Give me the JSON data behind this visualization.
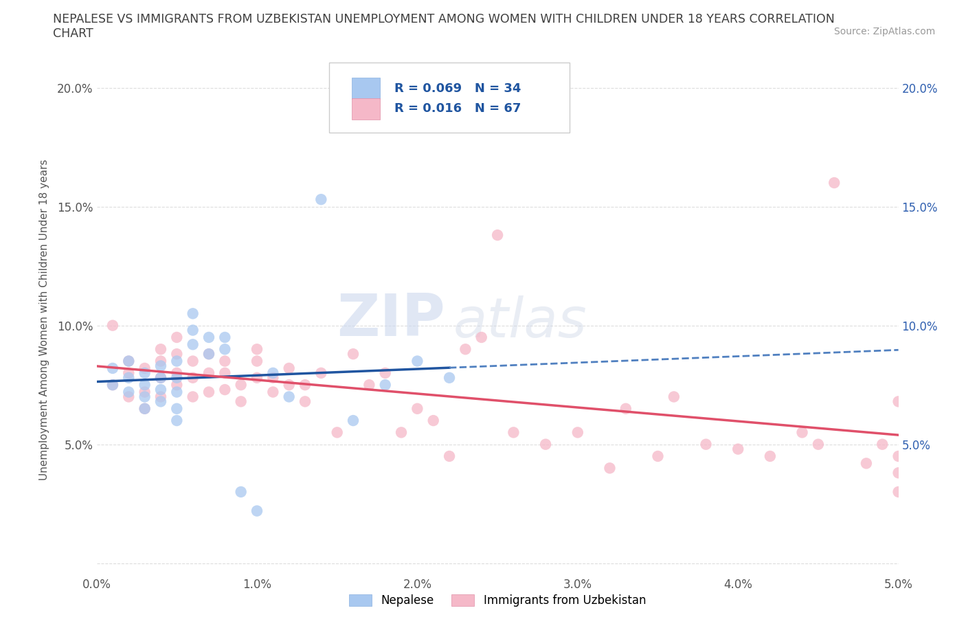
{
  "title_line1": "NEPALESE VS IMMIGRANTS FROM UZBEKISTAN UNEMPLOYMENT AMONG WOMEN WITH CHILDREN UNDER 18 YEARS CORRELATION",
  "title_line2": "CHART",
  "source": "Source: ZipAtlas.com",
  "ylabel": "Unemployment Among Women with Children Under 18 years",
  "label_nepalese": "Nepalese",
  "label_uzbek": "Immigrants from Uzbekistan",
  "xlim": [
    0.0,
    0.05
  ],
  "ylim": [
    -0.005,
    0.21
  ],
  "x_ticks": [
    0.0,
    0.01,
    0.02,
    0.03,
    0.04,
    0.05
  ],
  "x_tick_labels": [
    "0.0%",
    "1.0%",
    "2.0%",
    "3.0%",
    "4.0%",
    "5.0%"
  ],
  "y_ticks": [
    0.0,
    0.05,
    0.1,
    0.15,
    0.2
  ],
  "y_tick_labels_left": [
    "",
    "5.0%",
    "10.0%",
    "15.0%",
    "20.0%"
  ],
  "y_tick_labels_right": [
    "",
    "5.0%",
    "10.0%",
    "15.0%",
    "20.0%"
  ],
  "blue_scatter_color": "#a8c8f0",
  "pink_scatter_color": "#f5b8c8",
  "blue_line_color": "#2055a0",
  "pink_line_color": "#e0506a",
  "blue_line_color_dashed": "#5080c0",
  "grid_color": "#dddddd",
  "title_color": "#404040",
  "axis_label_color": "#555555",
  "right_tick_color": "#3060b0",
  "left_tick_color": "#555555",
  "legend_r1_text": "R = 0.069   N = 34",
  "legend_r2_text": "R = 0.016   N = 67",
  "watermark_color": "#e0e8f5",
  "background_color": "#ffffff",
  "nepalese_x": [
    0.001,
    0.001,
    0.002,
    0.002,
    0.002,
    0.003,
    0.003,
    0.003,
    0.003,
    0.004,
    0.004,
    0.004,
    0.004,
    0.005,
    0.005,
    0.005,
    0.005,
    0.005,
    0.006,
    0.006,
    0.006,
    0.007,
    0.007,
    0.008,
    0.008,
    0.009,
    0.01,
    0.011,
    0.012,
    0.014,
    0.016,
    0.018,
    0.02,
    0.022
  ],
  "nepalese_y": [
    0.075,
    0.082,
    0.072,
    0.078,
    0.085,
    0.065,
    0.07,
    0.075,
    0.08,
    0.068,
    0.073,
    0.078,
    0.083,
    0.06,
    0.065,
    0.072,
    0.078,
    0.085,
    0.092,
    0.098,
    0.105,
    0.088,
    0.095,
    0.09,
    0.095,
    0.03,
    0.022,
    0.08,
    0.07,
    0.153,
    0.06,
    0.075,
    0.085,
    0.078
  ],
  "uzbek_x": [
    0.001,
    0.001,
    0.002,
    0.002,
    0.002,
    0.003,
    0.003,
    0.003,
    0.004,
    0.004,
    0.004,
    0.004,
    0.005,
    0.005,
    0.005,
    0.005,
    0.006,
    0.006,
    0.006,
    0.007,
    0.007,
    0.007,
    0.008,
    0.008,
    0.008,
    0.009,
    0.009,
    0.01,
    0.01,
    0.01,
    0.011,
    0.011,
    0.012,
    0.012,
    0.013,
    0.013,
    0.014,
    0.015,
    0.016,
    0.017,
    0.018,
    0.019,
    0.02,
    0.021,
    0.022,
    0.023,
    0.024,
    0.025,
    0.026,
    0.028,
    0.03,
    0.032,
    0.033,
    0.035,
    0.036,
    0.038,
    0.04,
    0.042,
    0.044,
    0.045,
    0.046,
    0.048,
    0.049,
    0.05,
    0.05,
    0.05,
    0.05
  ],
  "uzbek_y": [
    0.1,
    0.075,
    0.07,
    0.08,
    0.085,
    0.065,
    0.072,
    0.082,
    0.07,
    0.078,
    0.085,
    0.09,
    0.075,
    0.08,
    0.088,
    0.095,
    0.07,
    0.078,
    0.085,
    0.072,
    0.08,
    0.088,
    0.073,
    0.08,
    0.085,
    0.068,
    0.075,
    0.078,
    0.085,
    0.09,
    0.072,
    0.078,
    0.075,
    0.082,
    0.068,
    0.075,
    0.08,
    0.055,
    0.088,
    0.075,
    0.08,
    0.055,
    0.065,
    0.06,
    0.045,
    0.09,
    0.095,
    0.138,
    0.055,
    0.05,
    0.055,
    0.04,
    0.065,
    0.045,
    0.07,
    0.05,
    0.048,
    0.045,
    0.055,
    0.05,
    0.16,
    0.042,
    0.05,
    0.03,
    0.045,
    0.038,
    0.068
  ]
}
